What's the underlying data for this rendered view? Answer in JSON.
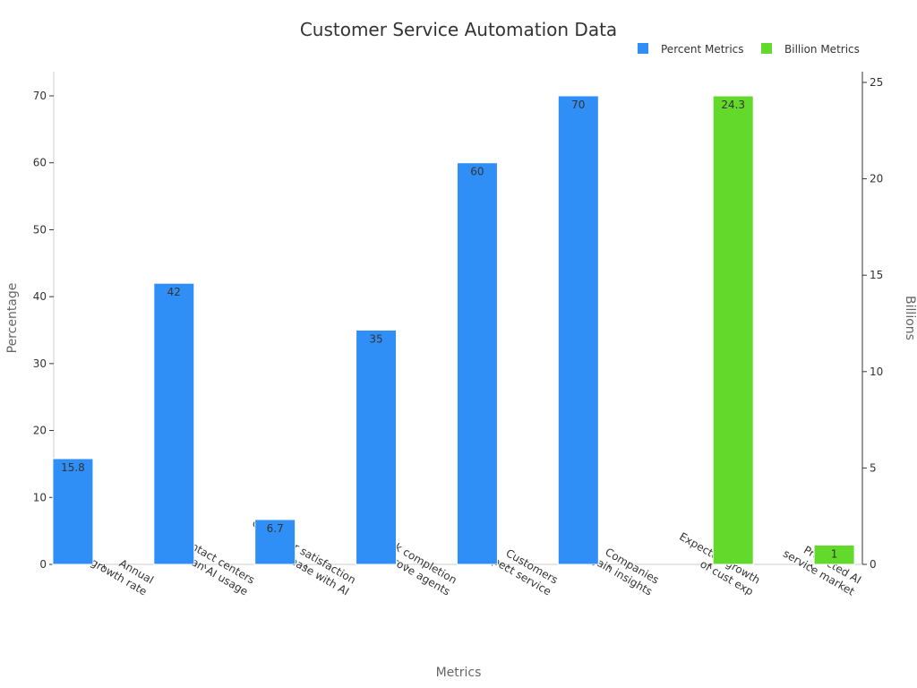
{
  "chart_data": {
    "type": "bar",
    "title": "Customer Service Automation Data",
    "xlabel": "Metrics",
    "ylabel": "Percentage",
    "y2label": "Billions",
    "ylim": [
      0,
      74
    ],
    "y2lim": [
      0,
      25.7
    ],
    "yticks": [
      0,
      10,
      20,
      30,
      40,
      50,
      60,
      70
    ],
    "y2ticks": [
      0,
      5,
      10,
      15,
      20,
      25
    ],
    "legend_position": "top-right",
    "grid": false,
    "categories": [
      [
        "Annual",
        "growth rate"
      ],
      [
        "Contact centers",
        "plan AI usage"
      ],
      [
        "Customer satisfaction",
        "increase with AI"
      ],
      [
        "Task completion",
        "improve agents"
      ],
      [
        "Customers",
        "expect service"
      ],
      [
        "Companies",
        "gain insights"
      ],
      [
        "Expected growth",
        "of cust exp"
      ],
      [
        "Projected AI",
        "service market"
      ]
    ],
    "series": [
      {
        "name": "Percent Metrics",
        "axis": "left",
        "color": "#2f8ff7",
        "values": [
          15.8,
          42,
          6.7,
          35,
          60,
          70,
          null,
          null
        ],
        "labels": [
          "15.8",
          "42",
          "6.7",
          "35",
          "60",
          "70",
          null,
          null
        ]
      },
      {
        "name": "Billion Metrics",
        "axis": "right",
        "color": "#62d92b",
        "values": [
          null,
          null,
          null,
          null,
          null,
          null,
          24.3,
          1
        ],
        "labels": [
          null,
          null,
          null,
          null,
          null,
          null,
          "24.3",
          "1"
        ]
      }
    ]
  }
}
